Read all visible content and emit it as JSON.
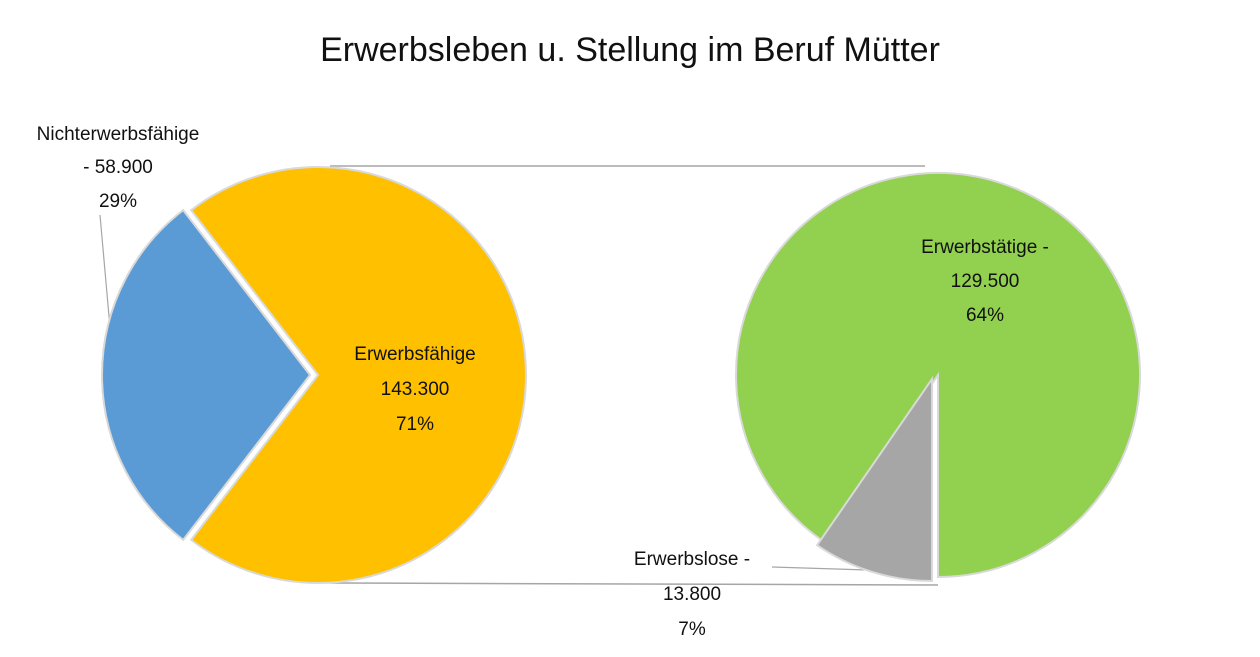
{
  "chart_data": {
    "type": "pie-of-pie",
    "title": "Erwerbsleben u. Stellung im Beruf Mütter",
    "pies": [
      {
        "categories": [
          "Nichterwerbsfähige",
          "Erwerbsfähige"
        ],
        "values": [
          58900,
          143300
        ],
        "value_labels": [
          "- 58.900",
          "143.300"
        ],
        "percents": [
          29,
          71
        ],
        "percent_labels": [
          "29%",
          "71%"
        ],
        "colors": [
          "#5b9bd5",
          "#ffc000"
        ]
      },
      {
        "categories": [
          "Erwerbstätige -",
          "Erwerbslose -"
        ],
        "values": [
          129500,
          13800
        ],
        "value_labels": [
          "129.500",
          "13.800"
        ],
        "percents": [
          64,
          7
        ],
        "percent_labels": [
          "64%",
          "7%"
        ],
        "colors": [
          "#92d050",
          "#a6a6a6"
        ]
      }
    ]
  }
}
